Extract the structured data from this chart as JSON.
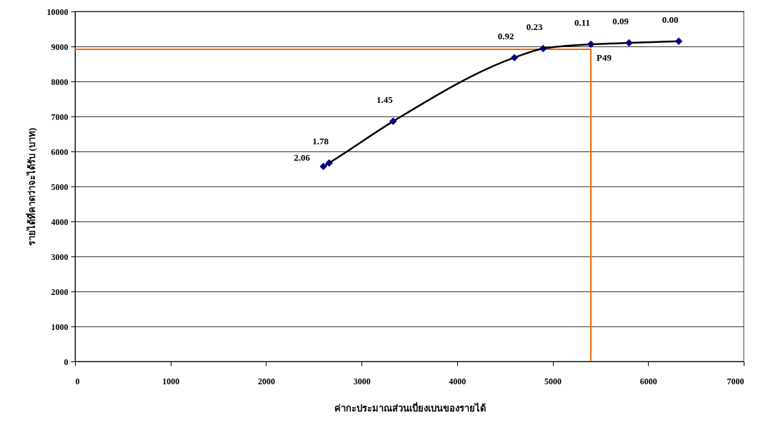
{
  "chart_data": {
    "type": "line",
    "xlabel": "ค่ากะประมาณส่วนเบี่ยงเบนของรายได้",
    "ylabel": "รายได้ที่คาดว่าจะได้รับ (บาท)",
    "x": [
      2600,
      2660,
      3330,
      4600,
      4900,
      5400,
      5800,
      6320
    ],
    "series": [
      {
        "color": "#000000",
        "colors": [
          "#000080",
          "#000080",
          "#000080",
          "#000080",
          "#000080",
          "#000080",
          "#000080",
          "#000080"
        ],
        "values": [
          5570,
          5670,
          6860,
          8680,
          8940,
          9060,
          9100,
          9150
        ]
      }
    ],
    "xlim": [
      0,
      7000
    ],
    "xticks": [
      0,
      1000,
      2000,
      3000,
      4000,
      5000,
      6000,
      7000
    ],
    "ylim": [
      0,
      10000
    ],
    "yticks": [
      0,
      1000,
      2000,
      3000,
      4000,
      5000,
      6000,
      7000,
      8000,
      9000,
      10000
    ],
    "grid": "y",
    "marker": "diamond",
    "line_style": "solid",
    "ref_lines": [
      {
        "axis": "x",
        "value": 5400,
        "color": "#ff6600"
      },
      {
        "axis": "y",
        "value": 8920,
        "color": "#ff6600"
      }
    ],
    "annotations": [
      {
        "text": "2.06",
        "x": 2600,
        "y": 5570
      },
      {
        "text": "1.78",
        "x": 2660,
        "y": 5670
      },
      {
        "text": "1.45",
        "x": 3330,
        "y": 6860
      },
      {
        "text": "0.92",
        "x": 4600,
        "y": 8680
      },
      {
        "text": "0.23",
        "x": 4900,
        "y": 8940
      },
      {
        "text": "0.11",
        "x": 5400,
        "y": 9060
      },
      {
        "text": "0.09",
        "x": 5800,
        "y": 9100
      },
      {
        "text": "0.00",
        "x": 6320,
        "y": 9150
      },
      {
        "text": "P49",
        "x": 5400,
        "y": 8920
      }
    ]
  }
}
